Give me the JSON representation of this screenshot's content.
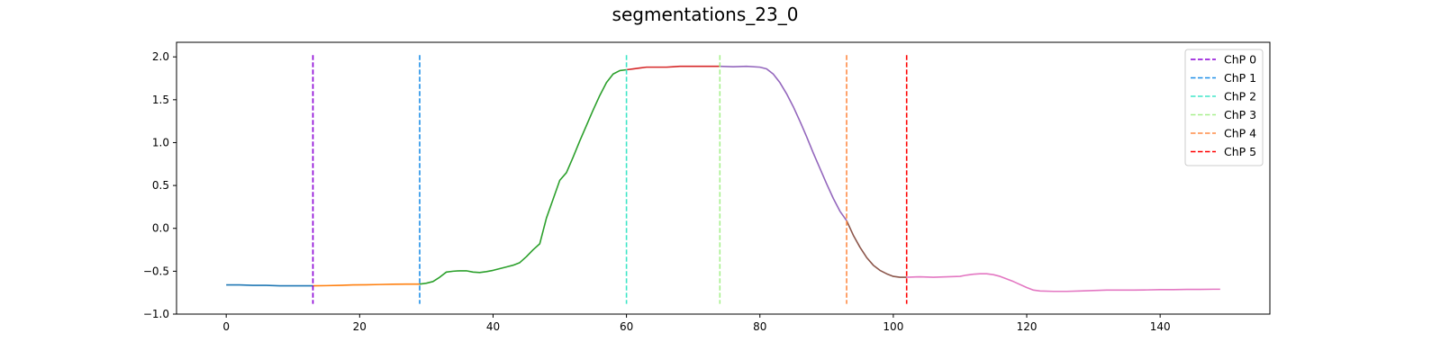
{
  "chart_data": {
    "type": "line",
    "title": "segmentations_23_0",
    "xlabel": "",
    "ylabel": "",
    "xlim": [
      -7.45,
      156.45
    ],
    "ylim": [
      -1.0,
      2.17
    ],
    "grid": false,
    "legend_placement": "top-right",
    "xticks": [
      0,
      20,
      40,
      60,
      80,
      100,
      120,
      140
    ],
    "yticks": [
      -1.0,
      -0.5,
      0.0,
      0.5,
      1.0,
      1.5,
      2.0
    ],
    "xtick_labels": [
      "0",
      "20",
      "40",
      "60",
      "80",
      "100",
      "120",
      "140"
    ],
    "ytick_labels": [
      "−1.0",
      "−0.5",
      "0.0",
      "0.5",
      "1.0",
      "1.5",
      "2.0"
    ],
    "series": [
      {
        "color": "#1f77b4",
        "x": [
          0,
          2,
          4,
          6,
          8,
          10,
          12,
          13
        ],
        "y": [
          -0.66,
          -0.66,
          -0.665,
          -0.665,
          -0.67,
          -0.67,
          -0.67,
          -0.67
        ]
      },
      {
        "color": "#ff7f0e",
        "x": [
          13,
          15,
          17,
          19,
          21,
          23,
          25,
          27,
          29
        ],
        "y": [
          -0.67,
          -0.668,
          -0.665,
          -0.66,
          -0.658,
          -0.655,
          -0.652,
          -0.65,
          -0.65
        ]
      },
      {
        "color": "#2ca02c",
        "x": [
          29,
          30,
          31,
          32,
          33,
          34,
          35,
          36,
          37,
          38,
          39,
          40,
          41,
          42,
          43,
          44,
          45,
          46,
          47,
          48,
          49,
          50,
          51,
          52,
          53,
          54,
          55,
          56,
          57,
          58,
          59,
          60
        ],
        "y": [
          -0.65,
          -0.64,
          -0.62,
          -0.57,
          -0.51,
          -0.5,
          -0.495,
          -0.495,
          -0.51,
          -0.515,
          -0.505,
          -0.49,
          -0.47,
          -0.45,
          -0.43,
          -0.4,
          -0.33,
          -0.25,
          -0.18,
          0.12,
          0.34,
          0.56,
          0.65,
          0.83,
          1.02,
          1.2,
          1.38,
          1.55,
          1.7,
          1.8,
          1.84,
          1.85
        ]
      },
      {
        "color": "#d62728",
        "x": [
          60,
          61,
          62,
          63,
          64,
          65,
          66,
          67,
          68,
          69,
          70,
          71,
          72,
          73,
          74
        ],
        "y": [
          1.85,
          1.86,
          1.87,
          1.88,
          1.88,
          1.88,
          1.88,
          1.885,
          1.89,
          1.89,
          1.89,
          1.89,
          1.89,
          1.89,
          1.89
        ]
      },
      {
        "color": "#9467bd",
        "x": [
          74,
          76,
          78,
          80,
          81,
          82,
          83,
          84,
          85,
          86,
          87,
          88,
          89,
          90,
          91,
          92,
          93
        ],
        "y": [
          1.89,
          1.885,
          1.89,
          1.88,
          1.86,
          1.8,
          1.7,
          1.57,
          1.42,
          1.25,
          1.07,
          0.88,
          0.7,
          0.52,
          0.35,
          0.2,
          0.09
        ]
      },
      {
        "color": "#8c564b",
        "x": [
          93,
          94,
          95,
          96,
          97,
          98,
          99,
          100,
          101,
          102
        ],
        "y": [
          0.09,
          -0.08,
          -0.22,
          -0.34,
          -0.43,
          -0.49,
          -0.53,
          -0.56,
          -0.57,
          -0.57
        ]
      },
      {
        "color": "#e377c2",
        "x": [
          102,
          104,
          106,
          108,
          110,
          111,
          112,
          113,
          114,
          115,
          116,
          118,
          120,
          121,
          122,
          124,
          126,
          128,
          130,
          132,
          134,
          136,
          138,
          140,
          142,
          144,
          146,
          148,
          149
        ],
        "y": [
          -0.57,
          -0.565,
          -0.57,
          -0.565,
          -0.56,
          -0.545,
          -0.535,
          -0.53,
          -0.53,
          -0.54,
          -0.56,
          -0.62,
          -0.69,
          -0.72,
          -0.73,
          -0.735,
          -0.735,
          -0.73,
          -0.725,
          -0.72,
          -0.72,
          -0.72,
          -0.718,
          -0.715,
          -0.715,
          -0.712,
          -0.712,
          -0.71,
          -0.71
        ]
      }
    ],
    "changepoints": [
      {
        "name": "ChP 0",
        "x": 13,
        "color": "#8b00d6"
      },
      {
        "name": "ChP 1",
        "x": 29,
        "color": "#1e8fe8"
      },
      {
        "name": "ChP 2",
        "x": 60,
        "color": "#40e6c8"
      },
      {
        "name": "ChP 3",
        "x": 74,
        "color": "#a8f08e"
      },
      {
        "name": "ChP 4",
        "x": 93,
        "color": "#ff8c46"
      },
      {
        "name": "ChP 5",
        "x": 102,
        "color": "#ff0000"
      }
    ]
  }
}
